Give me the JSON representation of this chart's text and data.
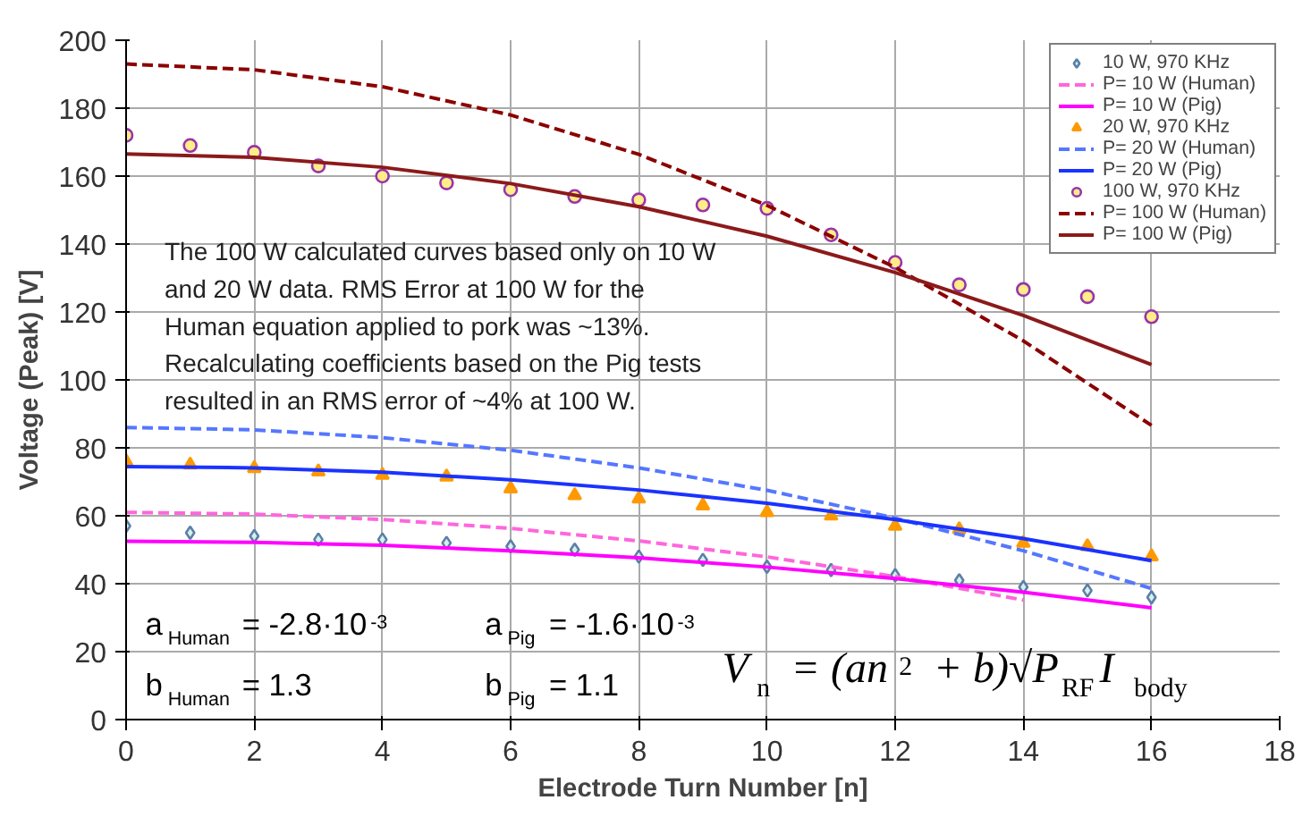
{
  "chart_data": {
    "type": "line",
    "xlabel": "Electrode Turn Number [n]",
    "ylabel": "Voltage (Peak) [V]",
    "x": [
      0,
      1,
      2,
      3,
      4,
      5,
      6,
      7,
      8,
      9,
      10,
      11,
      12,
      13,
      14,
      15,
      16
    ],
    "xlim": [
      0,
      18
    ],
    "ylim": [
      0,
      200
    ],
    "xticks": [
      0,
      2,
      4,
      6,
      8,
      10,
      12,
      14,
      16,
      18
    ],
    "yticks": [
      0,
      20,
      40,
      60,
      80,
      100,
      120,
      140,
      160,
      180,
      200
    ],
    "grid": true,
    "legend": "top right",
    "series": [
      {
        "name": "10 W, 970 KHz",
        "type": "scatter",
        "marker": "diamond",
        "color": "#5a7fa8",
        "values": [
          57,
          55,
          54,
          53,
          53,
          52,
          51,
          50,
          48,
          47,
          45,
          44,
          42.5,
          41,
          39,
          38,
          36
        ]
      },
      {
        "name": "P= 10 W (Human)",
        "marker": "none",
        "line_style": "dashed",
        "color": "#ff66dd",
        "x": [
          0,
          2,
          4,
          6,
          8,
          10,
          12,
          14
        ],
        "values": [
          61,
          60.5,
          58.9,
          56.3,
          52.6,
          47.9,
          42.1,
          35.2
        ]
      },
      {
        "name": "P= 10 W (Pig)",
        "marker": "none",
        "line_style": "solid",
        "color": "#ff00ff",
        "x": [
          0,
          2,
          4,
          6,
          8,
          10,
          12,
          14,
          16
        ],
        "values": [
          52.5,
          52.2,
          51.3,
          49.7,
          47.6,
          44.9,
          41.5,
          37.5,
          32.9
        ]
      },
      {
        "name": "20 W, 970 KHz",
        "type": "scatter",
        "marker": "triangle",
        "color": "#ff9900",
        "values": [
          76,
          75,
          74,
          73,
          72,
          71.5,
          68,
          66,
          65,
          63,
          61,
          60,
          57,
          56,
          52,
          51,
          48
        ]
      },
      {
        "name": "P= 20 W (Human)",
        "marker": "none",
        "line_style": "dashed",
        "color": "#5577ff",
        "x": [
          0,
          2,
          4,
          6,
          8,
          10,
          12,
          14,
          16
        ],
        "values": [
          86,
          85.3,
          83.0,
          79.3,
          74.1,
          67.5,
          59.3,
          49.7,
          38.6
        ]
      },
      {
        "name": "P= 20 W (Pig)",
        "marker": "none",
        "line_style": "solid",
        "color": "#1a33ff",
        "x": [
          0,
          2,
          4,
          6,
          8,
          10,
          12,
          14,
          16
        ],
        "values": [
          74.5,
          74.1,
          72.8,
          70.6,
          67.6,
          63.7,
          58.9,
          53.3,
          46.8
        ]
      },
      {
        "name": "100 W, 970 KHz",
        "type": "scatter",
        "marker": "circle",
        "color": "#9933aa",
        "values": [
          172,
          169,
          167,
          163,
          160,
          158,
          156,
          154,
          153,
          151.5,
          150.5,
          142.7,
          134.6,
          128,
          126.6,
          124.5,
          118.6
        ]
      },
      {
        "name": "P= 100 W (Human)",
        "marker": "none",
        "line_style": "dashed",
        "color": "#8b0000",
        "x": [
          0,
          2,
          4,
          6,
          8,
          10,
          12,
          14,
          16
        ],
        "values": [
          193,
          191.3,
          186.3,
          178.0,
          166.4,
          151.4,
          133.1,
          111.5,
          86.6
        ]
      },
      {
        "name": "P= 100 W (Pig)",
        "marker": "none",
        "line_style": "solid",
        "color": "#8b1a1a",
        "x": [
          0,
          2,
          4,
          6,
          8,
          10,
          12,
          14,
          16
        ],
        "values": [
          166.5,
          165.5,
          162.6,
          157.8,
          151.0,
          142.3,
          131.6,
          119.0,
          104.5
        ]
      }
    ],
    "annotations": [
      "The 100 W calculated curves based only on 10 W\nand 20 W data.  RMS Error at 100 W for the\nHuman equation applied to pork was ~13%.\nRecalculating coefficients based on the Pig tests\nresulted in an RMS error of ~4% at 100 W.",
      "a$_{Human}$ = -2.8·10$^{-3}$",
      "b$_{Human}$ = 1.3",
      "a$_{Pig}$ = -1.6·10$^{-3}$",
      "b$_{Pig}$ = 1.1",
      "V$_{n}$ = (an$^{2}$ + b)√P$_{RF}$I$_{body}$"
    ]
  }
}
